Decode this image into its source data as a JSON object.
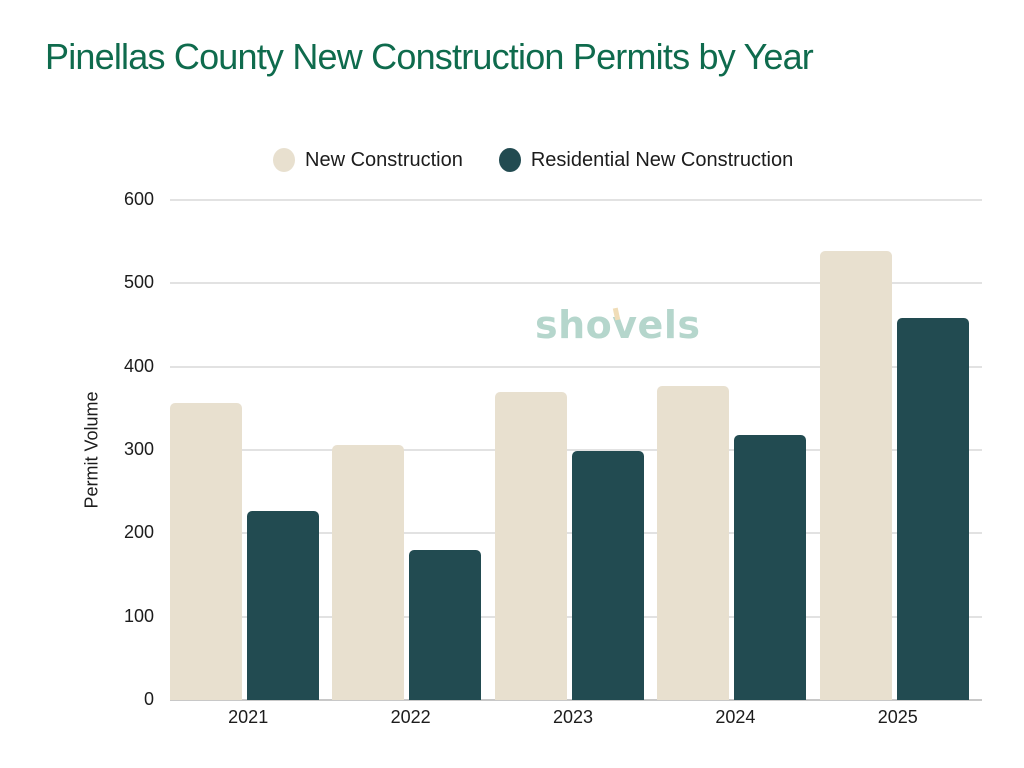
{
  "title": "Pinellas County New Construction Permits by Year",
  "watermark": "shovels",
  "colors": {
    "title": "#0f6b4d",
    "new_construction": "#e8e0cf",
    "residential_new_construction": "#224b51",
    "gridline": "#e2e2e2",
    "watermark": "#b5d6cc"
  },
  "legend": [
    {
      "label": "New Construction",
      "color": "#e8e0cf"
    },
    {
      "label": "Residential New Construction",
      "color": "#224b51"
    }
  ],
  "axes": {
    "ylabel": "Permit Volume",
    "yticks": [
      "0",
      "100",
      "200",
      "300",
      "400",
      "500",
      "600"
    ],
    "xticks": [
      "2021",
      "2022",
      "2023",
      "2024",
      "2025"
    ]
  },
  "chart_data": {
    "type": "bar",
    "title": "Pinellas County New Construction Permits by Year",
    "xlabel": "",
    "ylabel": "Permit Volume",
    "ylim": [
      0,
      600
    ],
    "grid": true,
    "legend_position": "top",
    "categories": [
      "2021",
      "2022",
      "2023",
      "2024",
      "2025"
    ],
    "series": [
      {
        "name": "New Construction",
        "color": "#e8e0cf",
        "values": [
          356,
          306,
          370,
          377,
          539
        ]
      },
      {
        "name": "Residential New Construction",
        "color": "#224b51",
        "values": [
          227,
          180,
          299,
          318,
          458
        ]
      }
    ]
  }
}
